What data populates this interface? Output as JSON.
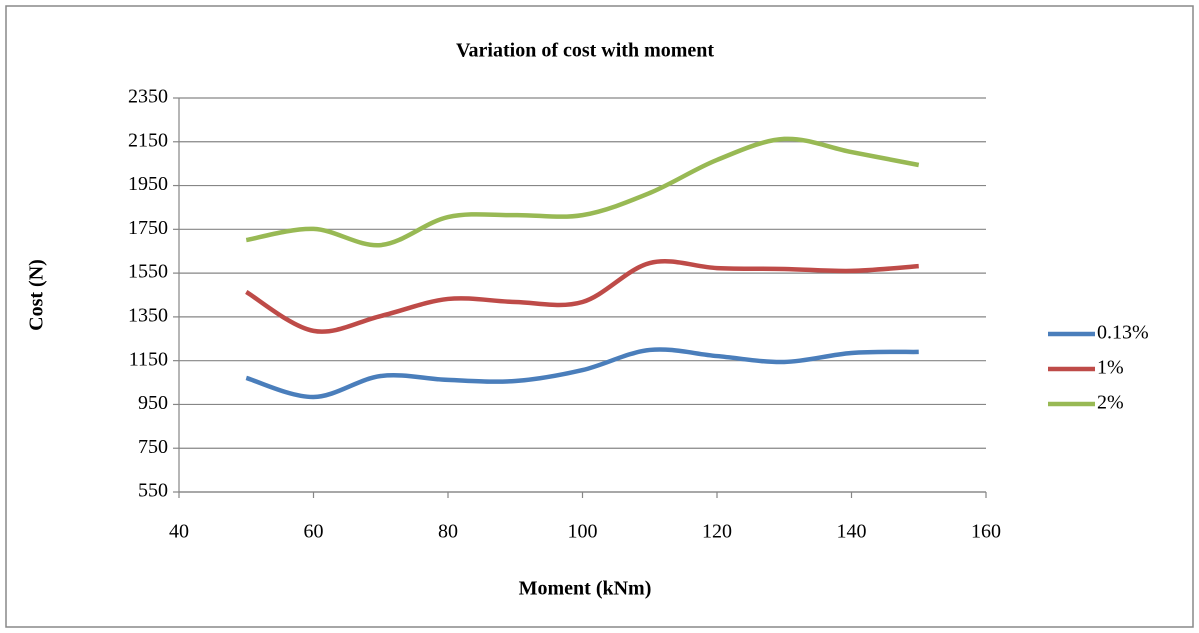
{
  "chart_data": {
    "type": "line",
    "title": "Variation of cost with moment",
    "x_label": "Moment (kNm)",
    "y_label": "Cost (N)",
    "x": [
      50,
      60,
      70,
      80,
      90,
      100,
      110,
      120,
      130,
      140,
      150
    ],
    "series": [
      {
        "name": "0.13%",
        "color": "#4a7ebb",
        "values": [
          1071,
          984,
          1080,
          1062,
          1057,
          1107,
          1199,
          1171,
          1144,
          1185,
          1190
        ]
      },
      {
        "name": "1%",
        "color": "#be4b48",
        "values": [
          1464,
          1286,
          1354,
          1432,
          1418,
          1418,
          1596,
          1573,
          1569,
          1560,
          1582
        ]
      },
      {
        "name": "2%",
        "color": "#98b954",
        "values": [
          1701,
          1752,
          1678,
          1806,
          1815,
          1815,
          1916,
          2067,
          2163,
          2103,
          2044
        ]
      }
    ],
    "xlim": [
      40,
      160
    ],
    "xticks": [
      40,
      60,
      80,
      100,
      120,
      140,
      160
    ],
    "ylim": [
      550,
      2350
    ],
    "yticks": [
      550,
      750,
      950,
      1150,
      1350,
      1550,
      1750,
      1950,
      2150,
      2350
    ],
    "grid": true,
    "legend": "right",
    "smooth": true
  }
}
